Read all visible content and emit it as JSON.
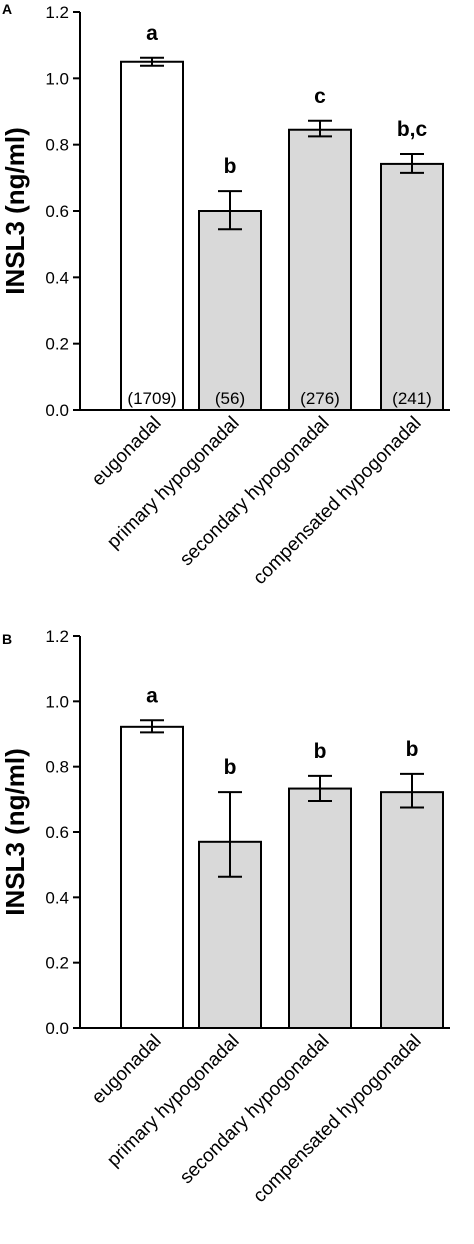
{
  "chart_data": [
    {
      "panel": "A",
      "type": "bar",
      "categories": [
        "eugonadal",
        "primary hypogonadal",
        "secondary hypogonadal",
        "compensated hypogonadal"
      ],
      "ylabel": "INSL3 (ng/ml)",
      "ylim": [
        0,
        1.2
      ],
      "yticks": [
        "0.0",
        "0.2",
        "0.4",
        "0.6",
        "0.8",
        "1.0",
        "1.2"
      ],
      "values": [
        1.05,
        0.6,
        0.845,
        0.742
      ],
      "err_low": [
        1.038,
        0.545,
        0.825,
        0.715
      ],
      "err_high": [
        1.062,
        0.66,
        0.872,
        0.772
      ],
      "significance": [
        "a",
        "b",
        "c",
        "b,c"
      ],
      "n_labels": [
        "(1709)",
        "(56)",
        "(276)",
        "(241)"
      ],
      "bar_fills": [
        "#ffffff",
        "#d9d9d9",
        "#d9d9d9",
        "#d9d9d9"
      ]
    },
    {
      "panel": "B",
      "type": "bar",
      "categories": [
        "eugonadal",
        "primary hypogonadal",
        "secondary hypogonadal",
        "compensated hypogonadal"
      ],
      "ylabel": "INSL3 (ng/ml)",
      "ylim": [
        0,
        1.2
      ],
      "yticks": [
        "0.0",
        "0.2",
        "0.4",
        "0.6",
        "0.8",
        "1.0",
        "1.2"
      ],
      "values": [
        0.922,
        0.57,
        0.733,
        0.722
      ],
      "err_low": [
        0.905,
        0.463,
        0.695,
        0.675
      ],
      "err_high": [
        0.942,
        0.722,
        0.772,
        0.778
      ],
      "significance": [
        "a",
        "b",
        "b",
        "b"
      ],
      "n_labels": [],
      "bar_fills": [
        "#ffffff",
        "#d9d9d9",
        "#d9d9d9",
        "#d9d9d9"
      ]
    }
  ]
}
